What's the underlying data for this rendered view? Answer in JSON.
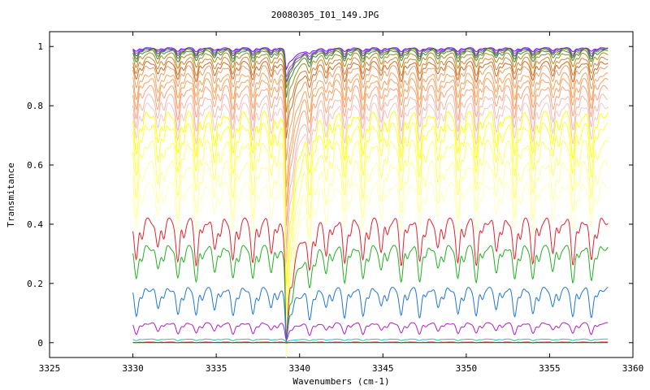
{
  "chart_data": {
    "type": "line",
    "title": "20080305_I01_149.JPG",
    "xlabel": "Wavenumbers (cm-1)",
    "ylabel": "Transmitance",
    "xlim": [
      3325,
      3360
    ],
    "ylim": [
      -0.05,
      1.05
    ],
    "x_ticks": [
      3325,
      3330,
      3335,
      3340,
      3345,
      3350,
      3355,
      3360
    ],
    "x_tick_labels": [
      "3325",
      "3330",
      "3335",
      "3340",
      "3345",
      "3350",
      "3355",
      "3360"
    ],
    "y_ticks": [
      0,
      0.2,
      0.4,
      0.6,
      0.8,
      1
    ],
    "y_tick_labels": [
      "0",
      "0.2",
      "0.4",
      "0.6",
      "0.8",
      "1"
    ],
    "x_range_data": [
      3330,
      3358.5
    ],
    "absorption_line_positions": [
      3330.2,
      3331.5,
      3332.7,
      3333.8,
      3334.9,
      3336.0,
      3337.2,
      3338.3,
      3339.2,
      3340.6,
      3341.6,
      3342.7,
      3343.8,
      3344.9,
      3346.1,
      3347.2,
      3348.3,
      3349.5,
      3350.6,
      3351.8,
      3352.9,
      3354.0,
      3355.2,
      3356.4,
      3357.5
    ],
    "grid": false,
    "series": [
      {
        "color": "#7f00ff",
        "baseline": 0.995,
        "line_depth": 0.012,
        "dip_3339": 0.06
      },
      {
        "color": "#9a5bc8",
        "baseline": 0.995,
        "line_depth": 0.02,
        "dip_3339": 0.08
      },
      {
        "color": "#4040c0",
        "baseline": 0.993,
        "line_depth": 0.025,
        "dip_3339": 0.09
      },
      {
        "color": "#808000",
        "baseline": 0.99,
        "line_depth": 0.03,
        "dip_3339": 0.1
      },
      {
        "color": "#2e8b57",
        "baseline": 0.985,
        "line_depth": 0.035,
        "dip_3339": 0.12
      },
      {
        "color": "#b8860b",
        "baseline": 0.975,
        "line_depth": 0.045,
        "dip_3339": 0.15
      },
      {
        "color": "#cd853f",
        "baseline": 0.96,
        "line_depth": 0.055,
        "dip_3339": 0.18
      },
      {
        "color": "#d2691e",
        "baseline": 0.945,
        "line_depth": 0.06,
        "dip_3339": 0.2
      },
      {
        "color": "#e0a070",
        "baseline": 0.93,
        "line_depth": 0.07,
        "dip_3339": 0.25
      },
      {
        "color": "#f4a460",
        "baseline": 0.905,
        "line_depth": 0.08,
        "dip_3339": 0.3
      },
      {
        "color": "#f4a460",
        "baseline": 0.885,
        "line_depth": 0.09,
        "dip_3339": 0.33
      },
      {
        "color": "#ffa07a",
        "baseline": 0.86,
        "line_depth": 0.1,
        "dip_3339": 0.36
      },
      {
        "color": "#f0b8a8",
        "baseline": 0.83,
        "line_depth": 0.11,
        "dip_3339": 0.4
      },
      {
        "color": "#f5c6c6",
        "baseline": 0.8,
        "line_depth": 0.12,
        "dip_3339": 0.42
      },
      {
        "color": "#ffff00",
        "baseline": 0.77,
        "line_depth": 0.14,
        "dip_3339": 0.45
      },
      {
        "color": "#ffff33",
        "baseline": 0.73,
        "line_depth": 0.16,
        "dip_3339": 0.48
      },
      {
        "color": "#ffff66",
        "baseline": 0.67,
        "line_depth": 0.17,
        "dip_3339": 0.5
      },
      {
        "color": "#ffff99",
        "baseline": 0.6,
        "line_depth": 0.17,
        "dip_3339": 0.5
      },
      {
        "color": "#ffffbb",
        "baseline": 0.53,
        "line_depth": 0.15,
        "dip_3339": 0.45
      },
      {
        "color": "#e8202a",
        "baseline": 0.41,
        "line_depth": 0.14,
        "dip_3339": 0.27
      },
      {
        "color": "#22b022",
        "baseline": 0.32,
        "line_depth": 0.11,
        "dip_3339": 0.22
      },
      {
        "color": "#1f77d4",
        "baseline": 0.18,
        "line_depth": 0.09,
        "dip_3339": 0.08
      },
      {
        "color": "#b020c0",
        "baseline": 0.065,
        "line_depth": 0.035,
        "dip_3339": 0.02
      },
      {
        "color": "#20c0d0",
        "baseline": 0.012,
        "line_depth": 0.005,
        "dip_3339": 0.005
      },
      {
        "color": "#d02020",
        "baseline": 0.002,
        "line_depth": 0.002,
        "dip_3339": 0.001
      },
      {
        "color": "#208020",
        "baseline": 0.0,
        "line_depth": 0.0,
        "dip_3339": 0.0
      }
    ]
  }
}
